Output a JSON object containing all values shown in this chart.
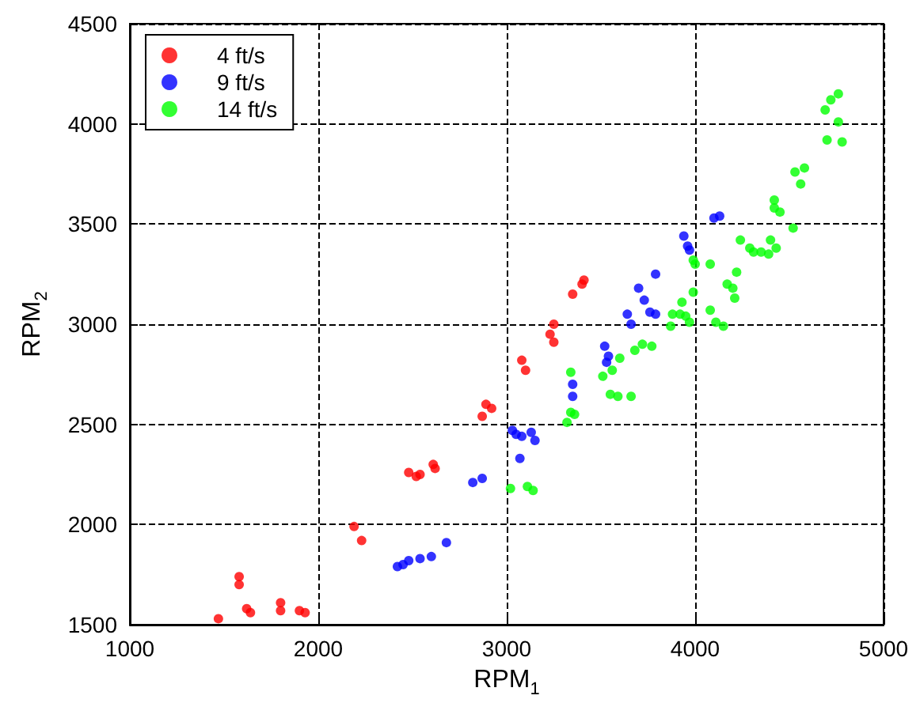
{
  "chart_data": {
    "type": "scatter",
    "xlabel": "RPM$_{1}$",
    "ylabel": "RPM$_{2}$",
    "xlim": [
      1000,
      5000
    ],
    "xticks": [
      1000,
      2000,
      3000,
      4000,
      5000
    ],
    "ylim": [
      1500,
      4500
    ],
    "yticks": [
      1500,
      2000,
      2500,
      3000,
      3500,
      4000,
      4500
    ],
    "grid": true,
    "legend": "top left",
    "marker": "circle",
    "series": [
      {
        "name": "4 ft/s",
        "color": "#ff0000",
        "x": [
          1470,
          1580,
          1580,
          1620,
          1640,
          1800,
          1800,
          1900,
          1930,
          2190,
          2230,
          2480,
          2520,
          2540,
          2610,
          2620,
          2870,
          2890,
          2920,
          3080,
          3100,
          3230,
          3250,
          3250,
          3350,
          3400,
          3410
        ],
        "values": [
          1530,
          1740,
          1700,
          1580,
          1560,
          1610,
          1570,
          1570,
          1560,
          1990,
          1920,
          2260,
          2240,
          2250,
          2300,
          2280,
          2540,
          2600,
          2580,
          2820,
          2770,
          2950,
          2910,
          3000,
          3150,
          3200,
          3220
        ]
      },
      {
        "name": "9 ft/s",
        "color": "#0000ff",
        "x": [
          2420,
          2450,
          2480,
          2540,
          2600,
          2680,
          2820,
          2870,
          3030,
          3050,
          3080,
          3070,
          3130,
          3150,
          3350,
          3350,
          3520,
          3530,
          3540,
          3640,
          3660,
          3700,
          3730,
          3760,
          3790,
          3790,
          3940,
          3960,
          3970,
          4100,
          4130
        ],
        "values": [
          1790,
          1800,
          1820,
          1830,
          1840,
          1910,
          2210,
          2230,
          2470,
          2450,
          2440,
          2330,
          2460,
          2420,
          2700,
          2640,
          2890,
          2810,
          2840,
          3050,
          3000,
          3180,
          3120,
          3060,
          3250,
          3050,
          3440,
          3390,
          3370,
          3530,
          3540
        ]
      },
      {
        "name": "14 ft/s",
        "color": "#00ff00",
        "x": [
          3020,
          3110,
          3140,
          3320,
          3340,
          3360,
          3340,
          3510,
          3560,
          3550,
          3590,
          3600,
          3680,
          3660,
          3720,
          3770,
          3870,
          3880,
          3920,
          3950,
          3970,
          3930,
          3990,
          4080,
          4110,
          4080,
          4150,
          4170,
          4200,
          4210,
          4220,
          4310,
          4240,
          4290,
          4350,
          4390,
          4400,
          4420,
          4420,
          4430,
          4450,
          4560,
          4530,
          4580,
          4520,
          4700,
          4690,
          4720,
          4760,
          4780,
          4760,
          4000,
          3990
        ],
        "values": [
          2180,
          2190,
          2170,
          2510,
          2560,
          2550,
          2760,
          2740,
          2770,
          2650,
          2640,
          2830,
          2870,
          2640,
          2900,
          2890,
          2990,
          3050,
          3050,
          3040,
          3010,
          3110,
          3160,
          3070,
          3010,
          3300,
          2990,
          3200,
          3180,
          3130,
          3260,
          3360,
          3420,
          3380,
          3360,
          3350,
          3420,
          3580,
          3620,
          3380,
          3560,
          3700,
          3760,
          3780,
          3480,
          3920,
          4070,
          4120,
          4150,
          3910,
          4010,
          3300,
          3320
        ]
      }
    ]
  }
}
